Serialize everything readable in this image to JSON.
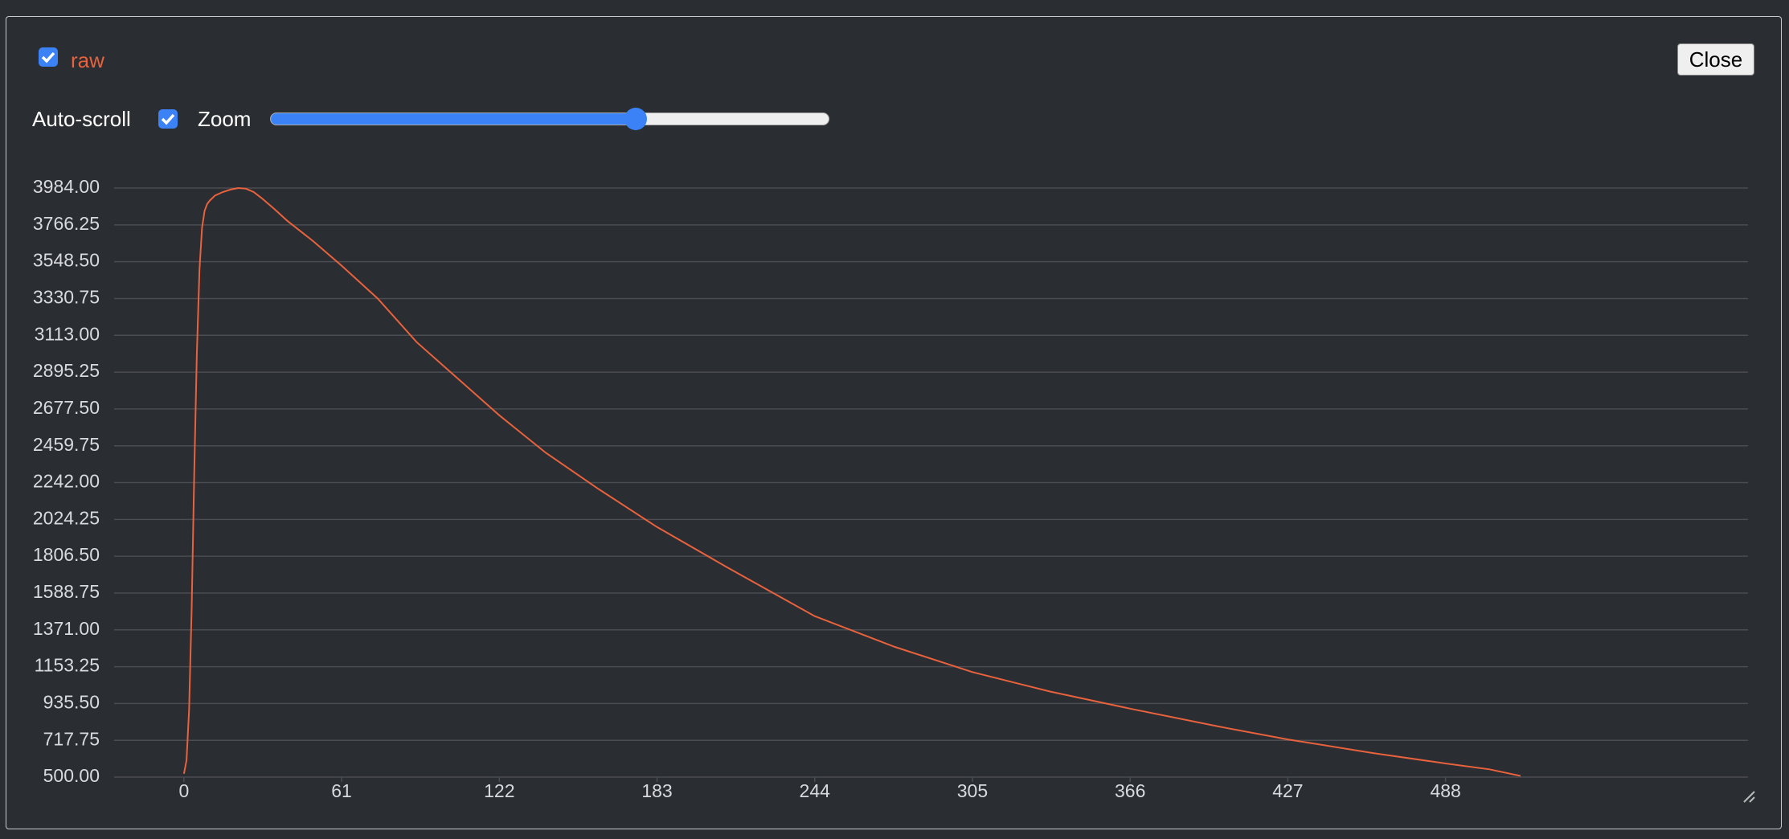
{
  "controls": {
    "auto_scroll": "Auto-scroll",
    "zoom": "Zoom",
    "close": "Close"
  },
  "chart_data": {
    "type": "line",
    "x": [
      0,
      1,
      2,
      3,
      4,
      5,
      6,
      7,
      8,
      9,
      10,
      12,
      15,
      18,
      21,
      24,
      27,
      30,
      35,
      40,
      50,
      61,
      75,
      90,
      105,
      122,
      140,
      160,
      183,
      210,
      244,
      275,
      305,
      335,
      366,
      400,
      427,
      460,
      488,
      505,
      517
    ],
    "series": [
      {
        "name": "raw",
        "color": "#e8623d",
        "values": [
          520,
          600,
          900,
          1500,
          2300,
          3000,
          3500,
          3750,
          3850,
          3890,
          3910,
          3940,
          3960,
          3975,
          3984,
          3980,
          3960,
          3925,
          3860,
          3790,
          3670,
          3525,
          3330,
          3073,
          2870,
          2640,
          2418,
          2208,
          1979,
          1742,
          1452,
          1270,
          1121,
          1006,
          905,
          800,
          723,
          642,
          581,
          546,
          507
        ]
      }
    ],
    "xlim": [
      -27,
      605
    ],
    "ylim": [
      500,
      3984
    ],
    "xticks": [
      0,
      61,
      122,
      183,
      244,
      305,
      366,
      427,
      488
    ],
    "yticks": [
      {
        "value": 500,
        "label": "500.00"
      },
      {
        "value": 717.75,
        "label": "717.75"
      },
      {
        "value": 935.5,
        "label": "935.50"
      },
      {
        "value": 1153.25,
        "label": "1153.25"
      },
      {
        "value": 1371,
        "label": "1371.00"
      },
      {
        "value": 1588.75,
        "label": "1588.75"
      },
      {
        "value": 1806.5,
        "label": "1806.50"
      },
      {
        "value": 2024.25,
        "label": "2024.25"
      },
      {
        "value": 2242,
        "label": "2242.00"
      },
      {
        "value": 2459.75,
        "label": "2459.75"
      },
      {
        "value": 2677.5,
        "label": "2677.50"
      },
      {
        "value": 2895.25,
        "label": "2895.25"
      },
      {
        "value": 3113,
        "label": "3113.00"
      },
      {
        "value": 3330.75,
        "label": "3330.75"
      },
      {
        "value": 3548.5,
        "label": "3548.50"
      },
      {
        "value": 3766.25,
        "label": "3766.25"
      },
      {
        "value": 3984,
        "label": "3984.00"
      }
    ],
    "grid": true
  }
}
